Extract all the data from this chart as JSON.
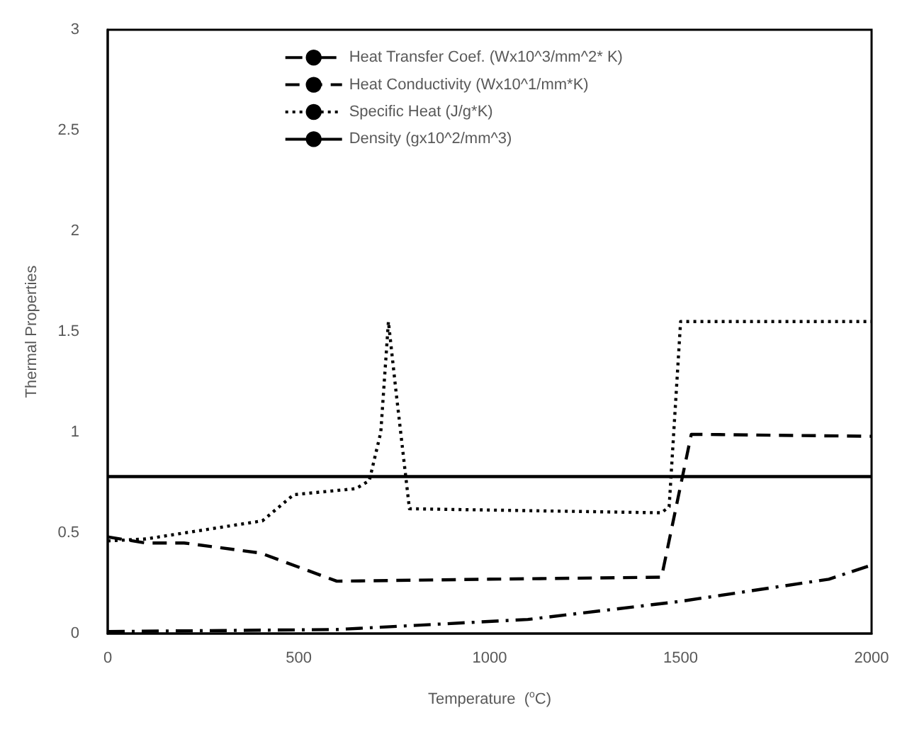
{
  "chart_data": {
    "type": "line",
    "xlabel": "Temperature  ($^{o}$C)",
    "ylabel": "Thermal Properties",
    "xlim": [
      0,
      2000
    ],
    "xticks": [
      0,
      500,
      1000,
      1500,
      2000
    ],
    "ylim": [
      0,
      3
    ],
    "yticks": [
      0,
      0.5,
      1,
      1.5,
      2,
      2.5,
      3
    ],
    "grid": false,
    "legend": "top",
    "marker": "none",
    "series": [
      {
        "name": "Heat Transfer Coef. (Wx10^3/mm^2* K)",
        "color": "#000000",
        "line_style": "dashdot",
        "x": [
          0,
          600,
          800,
          1100,
          1500,
          1888,
          2000
        ],
        "values": [
          0.01,
          0.02,
          0.04,
          0.07,
          0.16,
          0.27,
          0.34
        ]
      },
      {
        "name": "Heat Conductivity (Wx10^1/mm*K)",
        "color": "#000000",
        "line_style": "dashed",
        "x": [
          0,
          100,
          200,
          400,
          600,
          1000,
          1450,
          1528,
          2000
        ],
        "values": [
          0.48,
          0.45,
          0.45,
          0.4,
          0.26,
          0.27,
          0.28,
          0.99,
          0.98
        ]
      },
      {
        "name": "Specific Heat (J/g*K)",
        "color": "#000000",
        "line_style": "dotted",
        "x": [
          0,
          100,
          405,
          487,
          650,
          685,
          715,
          735,
          755,
          790,
          1450,
          1470,
          1500,
          2000
        ],
        "values": [
          0.46,
          0.47,
          0.56,
          0.69,
          0.72,
          0.76,
          1.0,
          1.55,
          1.2,
          0.62,
          0.6,
          0.63,
          1.55,
          1.55
        ]
      },
      {
        "name": "Density (gx10^2/mm^3)",
        "color": "#000000",
        "line_style": "solid",
        "x": [
          0,
          2000
        ],
        "values": [
          0.78,
          0.78
        ]
      }
    ]
  }
}
